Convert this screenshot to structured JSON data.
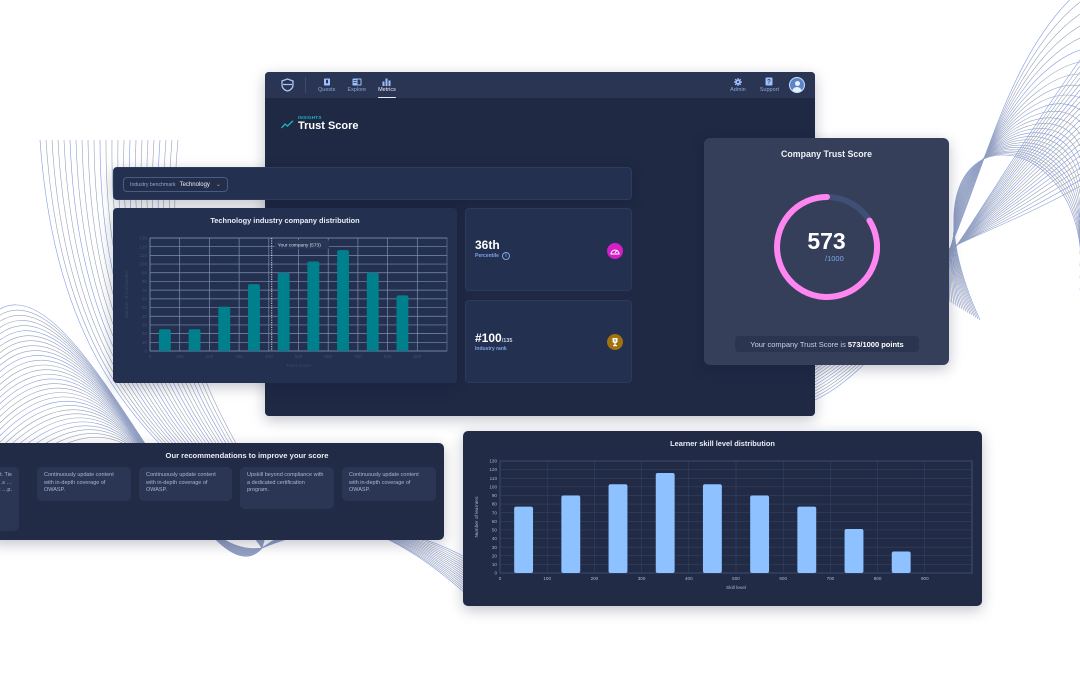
{
  "navbar": {
    "items": [
      {
        "label": "Quests",
        "icon": "book-icon"
      },
      {
        "label": "Explore",
        "icon": "map-book-icon"
      },
      {
        "label": "Metrics",
        "icon": "bar-chart-icon",
        "active": true
      }
    ],
    "right_items": [
      {
        "label": "Admin",
        "icon": "gear-icon"
      },
      {
        "label": "Support",
        "icon": "help-icon"
      }
    ]
  },
  "page": {
    "eyebrow": "INSIGHTS",
    "title": "Trust Score"
  },
  "benchmark": {
    "label": "Industry benchmark",
    "value": "Technology"
  },
  "tech_chart": {
    "title": "Technology industry company distribution",
    "marker_label": "Your company (573)"
  },
  "stats": {
    "percentile": {
      "value": "36th",
      "label": "Percentile",
      "icon": "speedometer-icon",
      "color": "#d41fc6"
    },
    "rank": {
      "value": "#100",
      "total": "/135",
      "label": "Industry rank",
      "icon": "trophy-icon",
      "color": "#a07210"
    }
  },
  "trust_score": {
    "title": "Company Trust Score",
    "value": "573",
    "max": "/1000",
    "note_prefix": "Your company Trust Score is",
    "note_value": "573/1000 points",
    "accent": "#ff85f1"
  },
  "recommendations": {
    "title": "Our recommendations to improve your score",
    "items": [
      {
        "text": "…ent. Tie …s …llout …p."
      },
      {
        "text": "Continuously update content with in-depth coverage of OWASP."
      },
      {
        "text": "Continuously update content with in-depth coverage of OWASP."
      },
      {
        "text": "Upskill beyond compliance with a dedicated certification program."
      },
      {
        "text": "Continuously update content with in-depth coverage of OWASP."
      }
    ]
  },
  "skill_chart": {
    "title": "Learner skill level distribution"
  },
  "chart_data": [
    {
      "type": "bar",
      "title": "Technology industry company distribution",
      "xlabel": "Trust Score",
      "ylabel": "Number of companies",
      "categories": [
        "50",
        "150",
        "250",
        "350",
        "450",
        "550",
        "650",
        "750",
        "850"
      ],
      "values": [
        25,
        25,
        51,
        77,
        90,
        103,
        116,
        90,
        64
      ],
      "x_ticks": [
        0,
        100,
        200,
        300,
        400,
        500,
        600,
        700,
        800,
        900
      ],
      "y_ticks": [
        0,
        10,
        20,
        30,
        40,
        50,
        60,
        70,
        80,
        90,
        100,
        110,
        120,
        130
      ],
      "ylim": [
        0,
        130
      ],
      "xlim": [
        0,
        1000
      ],
      "annotation": {
        "x": 410,
        "label": "Your company (573)"
      },
      "color": "#00808c",
      "grid": true
    },
    {
      "type": "bar",
      "title": "Learner skill level distribution",
      "xlabel": "Skill level",
      "ylabel": "Number of learners",
      "categories": [
        "50",
        "150",
        "250",
        "350",
        "450",
        "550",
        "650",
        "750",
        "850"
      ],
      "values": [
        77,
        90,
        103,
        116,
        103,
        90,
        77,
        51,
        25
      ],
      "x_ticks": [
        0,
        100,
        200,
        300,
        400,
        500,
        600,
        700,
        800,
        900
      ],
      "y_ticks": [
        0,
        10,
        20,
        30,
        40,
        50,
        60,
        70,
        80,
        90,
        100,
        110,
        120,
        130
      ],
      "ylim": [
        0,
        130
      ],
      "xlim": [
        0,
        1000
      ],
      "color": "#8ec1ff",
      "grid": true
    }
  ]
}
